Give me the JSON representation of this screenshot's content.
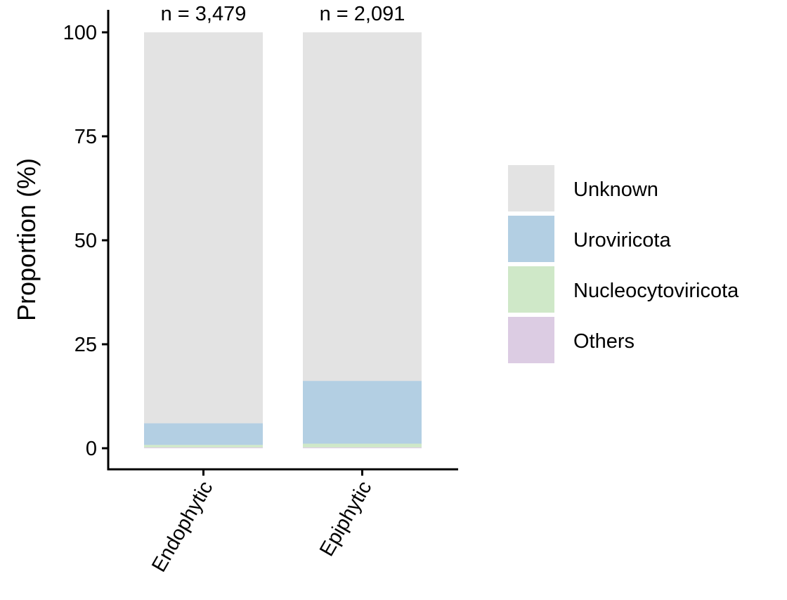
{
  "chart_data": {
    "type": "bar",
    "stacked": true,
    "categories": [
      "Endophytic",
      "Epiphytic"
    ],
    "annotations": [
      "n = 3,479",
      "n = 2,091"
    ],
    "ylabel": "Proportion (%)",
    "xlabel": "",
    "ylim": [
      0,
      100
    ],
    "yticks": [
      "0",
      "25",
      "50",
      "75",
      "100"
    ],
    "series": [
      {
        "name": "Others",
        "values": [
          0.2,
          0.2
        ],
        "color": "#dccce3"
      },
      {
        "name": "Nucleocytoviricota",
        "values": [
          0.6,
          0.9
        ],
        "color": "#cfe8c8"
      },
      {
        "name": "Uroviricota",
        "values": [
          5.2,
          15.1
        ],
        "color": "#b3cfe3"
      },
      {
        "name": "Unknown",
        "values": [
          94.0,
          83.8
        ],
        "color": "#e3e3e3"
      }
    ],
    "legend": {
      "position": "right",
      "order": [
        "Unknown",
        "Uroviricota",
        "Nucleocytoviricota",
        "Others"
      ]
    },
    "grid": false
  }
}
